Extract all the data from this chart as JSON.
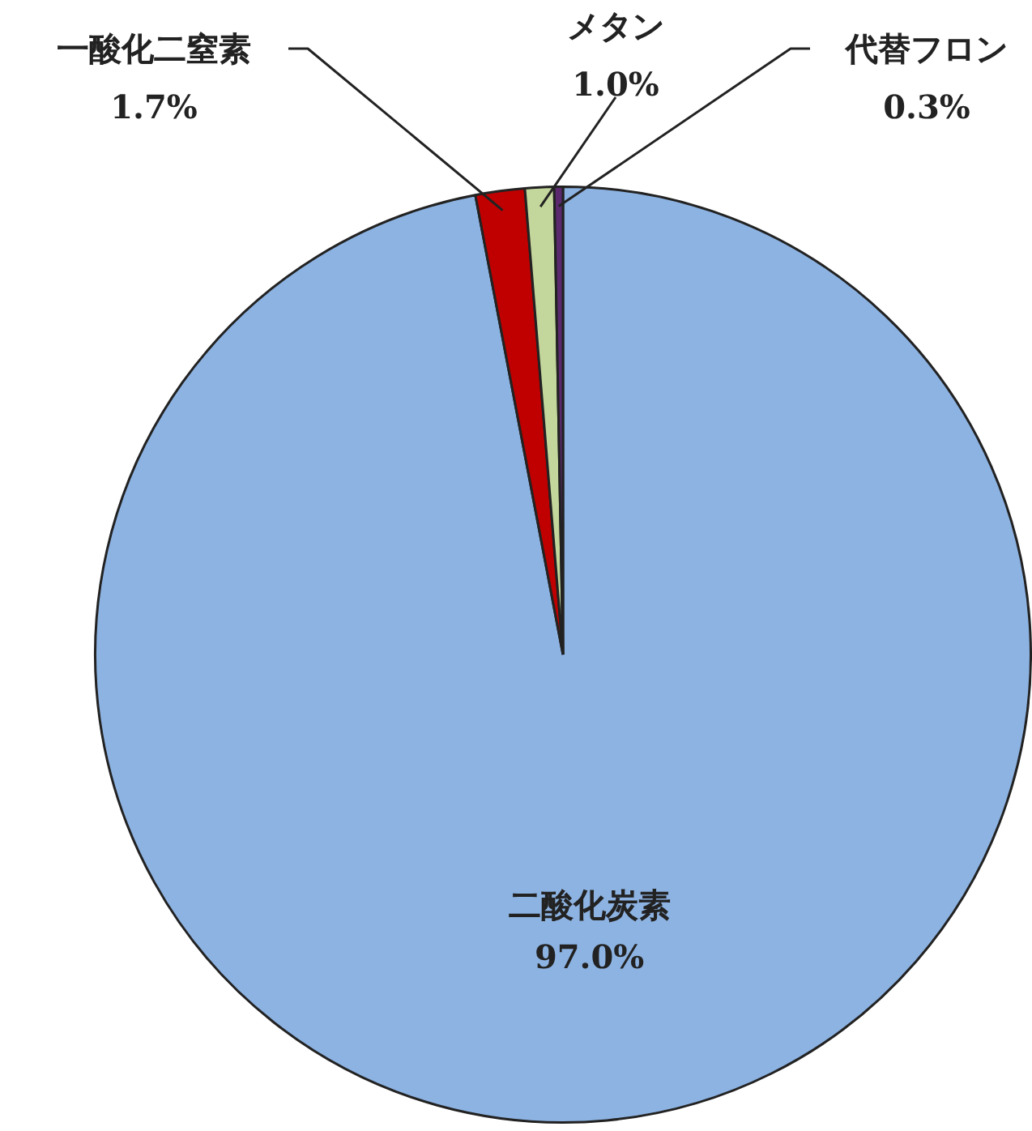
{
  "chart_data": {
    "type": "pie",
    "categories": [
      "二酸化炭素",
      "一酸化二窒素",
      "メタン",
      "代替フロン"
    ],
    "values": [
      97.0,
      1.7,
      1.0,
      0.3
    ],
    "colors": [
      "#8db3e2",
      "#c00000",
      "#c3d69b",
      "#5b2a6e"
    ],
    "value_labels": [
      "97.0%",
      "1.7%",
      "1.0%",
      "0.3%"
    ],
    "legend": false
  }
}
